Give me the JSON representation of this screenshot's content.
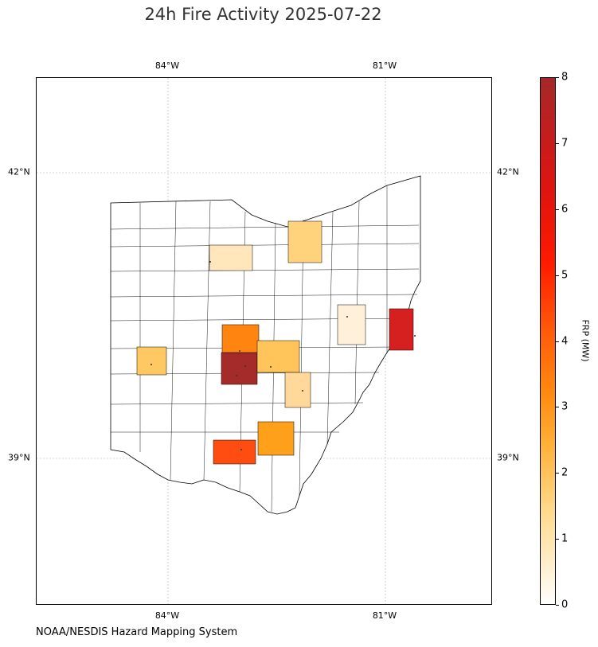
{
  "title": "24h Fire Activity 2025-07-22",
  "credit": "NOAA/NESDIS Hazard Mapping System",
  "lon_ticks": [
    "84°W",
    "81°W"
  ],
  "lat_ticks": [
    "42°N",
    "39°N"
  ],
  "colorbar": {
    "label": "FRP (MW)",
    "ticks": [
      "0",
      "1",
      "2",
      "3",
      "4",
      "5",
      "6",
      "7",
      "8"
    ],
    "min": 0,
    "max": 8,
    "colors": {
      "low": "#ffffff",
      "mid": "#ffa500",
      "high": "#ff0000",
      "max": "#a52a2a"
    }
  },
  "region": "Ohio",
  "highlighted_counties": [
    {
      "id": "county-a",
      "frp": 8.0
    },
    {
      "id": "county-b",
      "frp": 7.2
    },
    {
      "id": "county-c",
      "frp": 4.5
    },
    {
      "id": "county-d",
      "frp": 3.4
    },
    {
      "id": "county-e",
      "frp": 2.6
    },
    {
      "id": "county-f",
      "frp": 1.7
    },
    {
      "id": "county-g",
      "frp": 1.6
    },
    {
      "id": "county-h",
      "frp": 1.4
    },
    {
      "id": "county-i",
      "frp": 1.0
    },
    {
      "id": "county-j",
      "frp": 0.8
    },
    {
      "id": "county-k",
      "frp": 0.4
    }
  ]
}
